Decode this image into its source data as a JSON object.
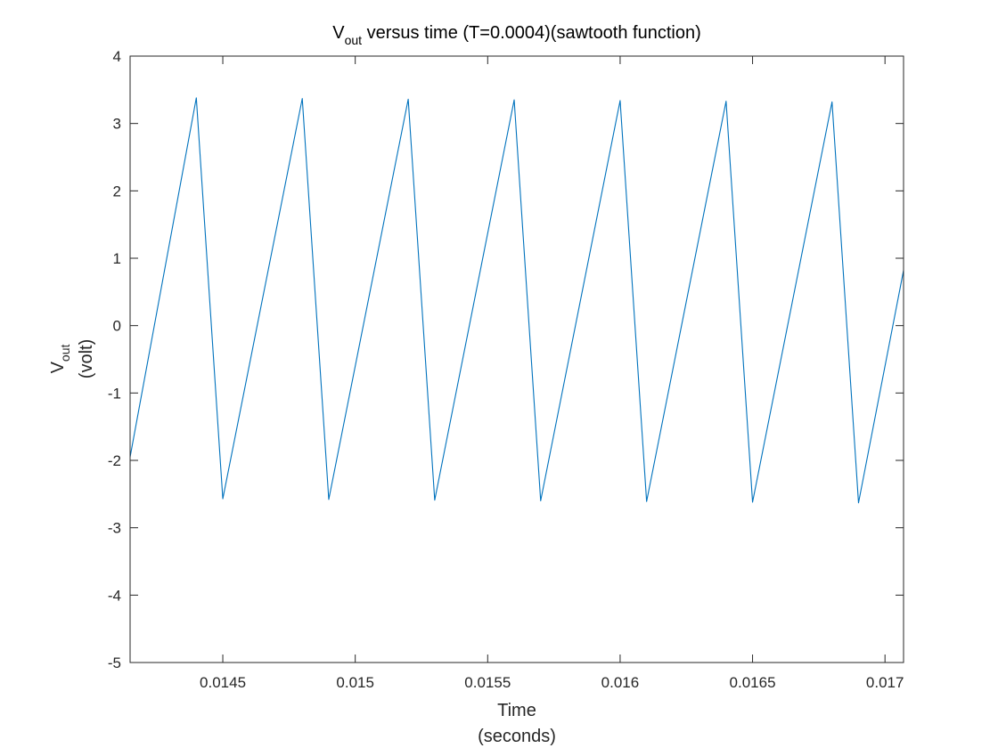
{
  "chart_data": {
    "type": "line",
    "title": {
      "main": "V",
      "subscript": "out",
      "rest": " versus time (T=0.0004)(sawtooth function)"
    },
    "xlabel": {
      "line1": "Time",
      "line2": "(seconds)"
    },
    "ylabel": {
      "main": "V",
      "subscript": "out",
      "line2": "(volt)"
    },
    "xlim": [
      0.01415,
      0.01707
    ],
    "ylim": [
      -5,
      4
    ],
    "x_ticks": [
      0.0145,
      0.015,
      0.0155,
      0.016,
      0.0165,
      0.017
    ],
    "x_tick_labels": [
      "0.0145",
      "0.015",
      "0.0155",
      "0.016",
      "0.0165",
      "0.017"
    ],
    "y_ticks": [
      -5,
      -4,
      -3,
      -2,
      -1,
      0,
      1,
      2,
      3,
      4
    ],
    "y_tick_labels": [
      "-5",
      "-4",
      "-3",
      "-2",
      "-1",
      "0",
      "1",
      "2",
      "3",
      "4"
    ],
    "grid": false,
    "series": [
      {
        "color": "#0072BD",
        "x": [
          0.01415,
          0.0144,
          0.0145,
          0.0148,
          0.0149,
          0.0152,
          0.0153,
          0.0156,
          0.0157,
          0.016,
          0.0161,
          0.0164,
          0.0165,
          0.0168,
          0.0169,
          0.01707
        ],
        "y": [
          -1.95,
          3.38,
          -2.57,
          3.37,
          -2.58,
          3.36,
          -2.59,
          3.35,
          -2.6,
          3.34,
          -2.61,
          3.33,
          -2.62,
          3.32,
          -2.63,
          0.82
        ]
      }
    ]
  }
}
